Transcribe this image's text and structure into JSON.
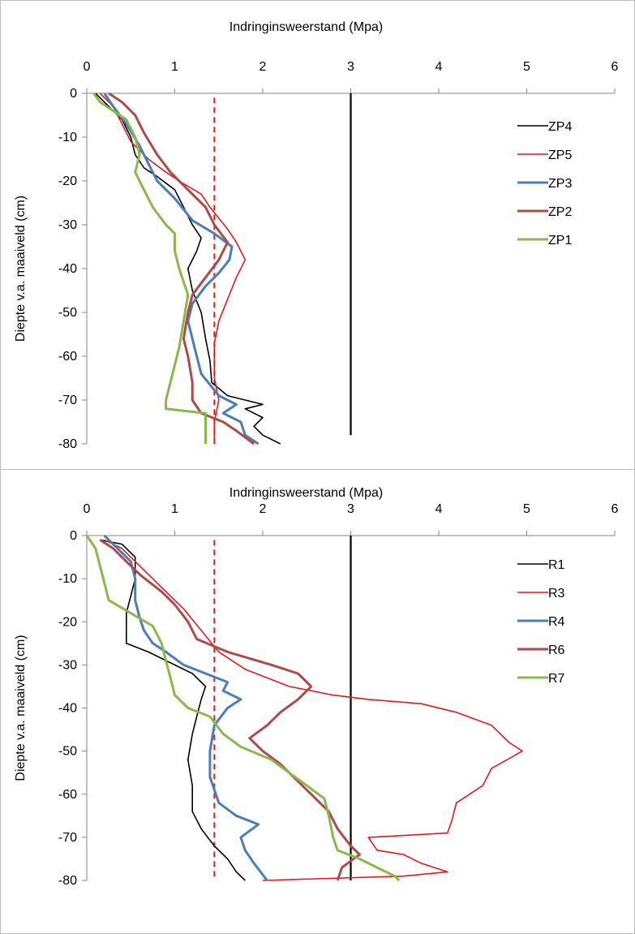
{
  "chart_data": [
    {
      "type": "line",
      "title": "",
      "xlabel": "Indringinsweerstand (Mpa)",
      "ylabel": "Diepte v.a. maaiveld (cm)",
      "xlim": [
        0,
        6
      ],
      "ylim": [
        -80,
        0
      ],
      "xticks": [
        "0",
        "1",
        "2",
        "3",
        "4",
        "5",
        "6"
      ],
      "yticks": [
        "0",
        "-10",
        "-20",
        "-30",
        "-40",
        "-50",
        "-60",
        "-70",
        "-80"
      ],
      "x_axis_position": "top",
      "grid": false,
      "legend_position": "right",
      "reference_lines": [
        {
          "x": 1.45,
          "style": "dashed",
          "color": "#e41a1c",
          "y_range": [
            -80,
            -1
          ]
        },
        {
          "x": 3.0,
          "style": "solid",
          "color": "#000000",
          "y_range": [
            -78,
            0
          ]
        }
      ],
      "series": [
        {
          "name": "ZP4",
          "color": "#000000",
          "points": [
            [
              0.1,
              0
            ],
            [
              0.2,
              -2
            ],
            [
              0.3,
              -4
            ],
            [
              0.4,
              -6
            ],
            [
              0.5,
              -10
            ],
            [
              0.55,
              -14
            ],
            [
              0.65,
              -17
            ],
            [
              0.8,
              -19
            ],
            [
              1.0,
              -22
            ],
            [
              1.1,
              -26
            ],
            [
              1.2,
              -30
            ],
            [
              1.3,
              -33
            ],
            [
              1.25,
              -36
            ],
            [
              1.15,
              -40
            ],
            [
              1.2,
              -45
            ],
            [
              1.3,
              -50
            ],
            [
              1.35,
              -56
            ],
            [
              1.4,
              -61
            ],
            [
              1.42,
              -66
            ],
            [
              1.6,
              -69
            ],
            [
              2.0,
              -71
            ],
            [
              1.8,
              -72
            ],
            [
              2.0,
              -74
            ],
            [
              1.9,
              -76
            ],
            [
              2.0,
              -78
            ],
            [
              2.2,
              -80
            ]
          ]
        },
        {
          "name": "ZP5",
          "color": "#e41a1c",
          "points": [
            [
              0.15,
              0
            ],
            [
              0.3,
              -3
            ],
            [
              0.4,
              -7
            ],
            [
              0.5,
              -11
            ],
            [
              0.7,
              -15
            ],
            [
              0.9,
              -18
            ],
            [
              1.05,
              -20
            ],
            [
              1.3,
              -23
            ],
            [
              1.4,
              -26
            ],
            [
              1.6,
              -31
            ],
            [
              1.7,
              -34
            ],
            [
              1.75,
              -36
            ],
            [
              1.8,
              -38
            ],
            [
              1.7,
              -42
            ],
            [
              1.6,
              -47
            ],
            [
              1.5,
              -52
            ],
            [
              1.45,
              -57
            ],
            [
              1.45,
              -65
            ],
            [
              1.5,
              -70
            ],
            [
              1.45,
              -75
            ],
            [
              1.45,
              -80
            ]
          ]
        },
        {
          "name": "ZP3",
          "color": "#4a7ebb",
          "points": [
            [
              0.2,
              0
            ],
            [
              0.3,
              -3
            ],
            [
              0.45,
              -7
            ],
            [
              0.6,
              -12
            ],
            [
              0.7,
              -16
            ],
            [
              0.8,
              -20
            ],
            [
              1.0,
              -24
            ],
            [
              1.2,
              -29
            ],
            [
              1.45,
              -32
            ],
            [
              1.65,
              -35
            ],
            [
              1.62,
              -38
            ],
            [
              1.5,
              -41
            ],
            [
              1.35,
              -44
            ],
            [
              1.2,
              -48
            ],
            [
              1.15,
              -52
            ],
            [
              1.2,
              -56
            ],
            [
              1.25,
              -60
            ],
            [
              1.3,
              -64
            ],
            [
              1.5,
              -69
            ],
            [
              1.7,
              -71
            ],
            [
              1.55,
              -73
            ],
            [
              1.75,
              -75
            ],
            [
              1.8,
              -78
            ],
            [
              1.95,
              -80
            ]
          ]
        },
        {
          "name": "ZP2",
          "color": "#b04a4a",
          "points": [
            [
              0.25,
              0
            ],
            [
              0.4,
              -2
            ],
            [
              0.55,
              -5
            ],
            [
              0.65,
              -9
            ],
            [
              0.8,
              -14
            ],
            [
              0.95,
              -18
            ],
            [
              1.15,
              -22
            ],
            [
              1.35,
              -26
            ],
            [
              1.45,
              -30
            ],
            [
              1.6,
              -34
            ],
            [
              1.5,
              -38
            ],
            [
              1.35,
              -42
            ],
            [
              1.2,
              -46
            ],
            [
              1.15,
              -50
            ],
            [
              1.1,
              -56
            ],
            [
              1.15,
              -60
            ],
            [
              1.2,
              -66
            ],
            [
              1.2,
              -70
            ],
            [
              1.3,
              -73
            ],
            [
              1.55,
              -75
            ],
            [
              1.7,
              -77
            ],
            [
              1.9,
              -80
            ]
          ]
        },
        {
          "name": "ZP1",
          "color": "#8bb84a",
          "points": [
            [
              0.08,
              0
            ],
            [
              0.15,
              -2
            ],
            [
              0.3,
              -4
            ],
            [
              0.45,
              -6
            ],
            [
              0.55,
              -10
            ],
            [
              0.6,
              -14
            ],
            [
              0.55,
              -18
            ],
            [
              0.65,
              -22
            ],
            [
              0.75,
              -26
            ],
            [
              0.9,
              -30
            ],
            [
              1.0,
              -32
            ],
            [
              1.0,
              -36
            ],
            [
              1.05,
              -40
            ],
            [
              1.15,
              -46
            ],
            [
              1.1,
              -52
            ],
            [
              1.05,
              -58
            ],
            [
              1.0,
              -62
            ],
            [
              0.95,
              -66
            ],
            [
              0.9,
              -70
            ],
            [
              0.9,
              -72
            ],
            [
              1.35,
              -73
            ],
            [
              1.35,
              -76
            ],
            [
              1.35,
              -80
            ]
          ]
        }
      ]
    },
    {
      "type": "line",
      "title": "",
      "xlabel": "Indringinsweerstand (Mpa)",
      "ylabel": "Diepte v.a. maaiveld (cm)",
      "xlim": [
        0,
        6
      ],
      "ylim": [
        -80,
        0
      ],
      "xticks": [
        "0",
        "1",
        "2",
        "3",
        "4",
        "5",
        "6"
      ],
      "yticks": [
        "0",
        "-10",
        "-20",
        "-30",
        "-40",
        "-50",
        "-60",
        "-70",
        "-80"
      ],
      "x_axis_position": "top",
      "grid": false,
      "legend_position": "right",
      "reference_lines": [
        {
          "x": 1.45,
          "style": "dashed",
          "color": "#e41a1c",
          "y_range": [
            -80,
            -1
          ]
        },
        {
          "x": 3.0,
          "style": "solid",
          "color": "#000000",
          "y_range": [
            -80,
            0
          ]
        }
      ],
      "series": [
        {
          "name": "R1",
          "color": "#000000",
          "points": [
            [
              0.15,
              -1
            ],
            [
              0.4,
              -2
            ],
            [
              0.55,
              -5
            ],
            [
              0.55,
              -10
            ],
            [
              0.5,
              -14
            ],
            [
              0.45,
              -18
            ],
            [
              0.45,
              -22
            ],
            [
              0.45,
              -25
            ],
            [
              0.7,
              -27
            ],
            [
              1.0,
              -30
            ],
            [
              1.2,
              -32
            ],
            [
              1.35,
              -35
            ],
            [
              1.3,
              -38
            ],
            [
              1.25,
              -42
            ],
            [
              1.2,
              -46
            ],
            [
              1.15,
              -52
            ],
            [
              1.2,
              -58
            ],
            [
              1.2,
              -64
            ],
            [
              1.3,
              -68
            ],
            [
              1.45,
              -72
            ],
            [
              1.6,
              -75
            ],
            [
              1.7,
              -78
            ],
            [
              1.8,
              -80
            ]
          ]
        },
        {
          "name": "R3",
          "color": "#e41a1c",
          "points": [
            [
              0.2,
              -1
            ],
            [
              0.4,
              -3
            ],
            [
              0.6,
              -7
            ],
            [
              0.85,
              -12
            ],
            [
              1.1,
              -17
            ],
            [
              1.3,
              -22
            ],
            [
              1.5,
              -27
            ],
            [
              1.8,
              -31
            ],
            [
              2.3,
              -35
            ],
            [
              2.8,
              -37
            ],
            [
              3.2,
              -38
            ],
            [
              3.8,
              -39
            ],
            [
              4.2,
              -41
            ],
            [
              4.6,
              -44
            ],
            [
              4.8,
              -48
            ],
            [
              4.95,
              -50
            ],
            [
              4.6,
              -54
            ],
            [
              4.5,
              -58
            ],
            [
              4.2,
              -62
            ],
            [
              4.15,
              -66
            ],
            [
              4.1,
              -69
            ],
            [
              3.2,
              -70
            ],
            [
              3.3,
              -73
            ],
            [
              3.6,
              -74
            ],
            [
              3.8,
              -76
            ],
            [
              4.1,
              -78
            ],
            [
              3.6,
              -79
            ],
            [
              2.0,
              -80
            ]
          ]
        },
        {
          "name": "R4",
          "color": "#4a7ebb",
          "points": [
            [
              0.2,
              0
            ],
            [
              0.35,
              -3
            ],
            [
              0.5,
              -6
            ],
            [
              0.55,
              -10
            ],
            [
              0.55,
              -15
            ],
            [
              0.6,
              -19
            ],
            [
              0.65,
              -22
            ],
            [
              0.75,
              -25
            ],
            [
              0.9,
              -27
            ],
            [
              1.1,
              -30
            ],
            [
              1.35,
              -32
            ],
            [
              1.6,
              -34
            ],
            [
              1.55,
              -36
            ],
            [
              1.75,
              -38
            ],
            [
              1.6,
              -40
            ],
            [
              1.45,
              -44
            ],
            [
              1.4,
              -50
            ],
            [
              1.4,
              -56
            ],
            [
              1.5,
              -62
            ],
            [
              1.7,
              -65
            ],
            [
              1.95,
              -67
            ],
            [
              1.75,
              -70
            ],
            [
              1.8,
              -73
            ],
            [
              1.9,
              -76
            ],
            [
              2.05,
              -80
            ]
          ]
        },
        {
          "name": "R6",
          "color": "#b04a4a",
          "points": [
            [
              0.15,
              -1
            ],
            [
              0.3,
              -3
            ],
            [
              0.45,
              -6
            ],
            [
              0.6,
              -9
            ],
            [
              0.85,
              -13
            ],
            [
              1.0,
              -16
            ],
            [
              1.15,
              -20
            ],
            [
              1.25,
              -24
            ],
            [
              1.6,
              -27
            ],
            [
              2.1,
              -30
            ],
            [
              2.4,
              -32
            ],
            [
              2.55,
              -35
            ],
            [
              2.4,
              -38
            ],
            [
              2.2,
              -41
            ],
            [
              2.05,
              -44
            ],
            [
              1.85,
              -47
            ],
            [
              2.0,
              -50
            ],
            [
              2.2,
              -53
            ],
            [
              2.4,
              -57
            ],
            [
              2.6,
              -61
            ],
            [
              2.75,
              -64
            ],
            [
              2.85,
              -68
            ],
            [
              3.0,
              -72
            ],
            [
              3.1,
              -74
            ],
            [
              2.9,
              -77
            ],
            [
              2.85,
              -80
            ]
          ]
        },
        {
          "name": "R7",
          "color": "#8bb84a",
          "points": [
            [
              0.0,
              0
            ],
            [
              0.1,
              -3
            ],
            [
              0.15,
              -7
            ],
            [
              0.2,
              -11
            ],
            [
              0.25,
              -15
            ],
            [
              0.5,
              -18
            ],
            [
              0.75,
              -21
            ],
            [
              0.85,
              -25
            ],
            [
              0.9,
              -29
            ],
            [
              0.95,
              -33
            ],
            [
              1.0,
              -37
            ],
            [
              1.15,
              -40
            ],
            [
              1.4,
              -42
            ],
            [
              1.55,
              -46
            ],
            [
              1.75,
              -49
            ],
            [
              2.1,
              -52
            ],
            [
              2.3,
              -55
            ],
            [
              2.5,
              -58
            ],
            [
              2.7,
              -61
            ],
            [
              2.75,
              -65
            ],
            [
              2.8,
              -70
            ],
            [
              2.85,
              -73
            ],
            [
              3.1,
              -75
            ],
            [
              3.3,
              -77
            ],
            [
              3.5,
              -79
            ],
            [
              3.55,
              -80
            ]
          ]
        }
      ]
    }
  ]
}
